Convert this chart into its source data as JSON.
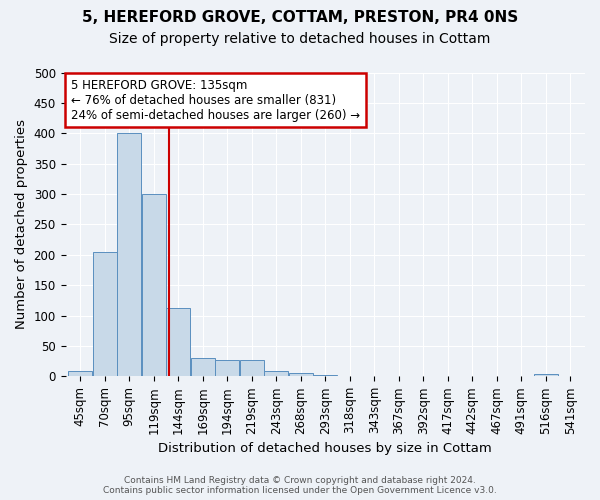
{
  "title_line1": "5, HEREFORD GROVE, COTTAM, PRESTON, PR4 0NS",
  "title_line2": "Size of property relative to detached houses in Cottam",
  "xlabel": "Distribution of detached houses by size in Cottam",
  "ylabel": "Number of detached properties",
  "footer_line1": "Contains HM Land Registry data © Crown copyright and database right 2024.",
  "footer_line2": "Contains public sector information licensed under the Open Government Licence v3.0.",
  "categories": [
    "45sqm",
    "70sqm",
    "95sqm",
    "119sqm",
    "144sqm",
    "169sqm",
    "194sqm",
    "219sqm",
    "243sqm",
    "268sqm",
    "293sqm",
    "318sqm",
    "343sqm",
    "367sqm",
    "392sqm",
    "417sqm",
    "442sqm",
    "467sqm",
    "491sqm",
    "516sqm",
    "541sqm"
  ],
  "values": [
    8,
    205,
    400,
    300,
    112,
    30,
    27,
    27,
    8,
    5,
    2,
    0,
    0,
    0,
    0,
    0,
    0,
    0,
    0,
    4,
    0
  ],
  "bar_color": "#c8d9e8",
  "bar_edge_color": "#5a8fbf",
  "annotation_text_line1": "5 HEREFORD GROVE: 135sqm",
  "annotation_text_line2": "← 76% of detached houses are smaller (831)",
  "annotation_text_line3": "24% of semi-detached houses are larger (260) →",
  "annotation_box_color": "#ffffff",
  "annotation_box_edge_color": "#cc0000",
  "vline_color": "#cc0000",
  "vline_x_bar": 3.64,
  "ylim": [
    0,
    500
  ],
  "yticks": [
    0,
    50,
    100,
    150,
    200,
    250,
    300,
    350,
    400,
    450,
    500
  ],
  "background_color": "#eef2f7",
  "grid_color": "#ffffff",
  "title_fontsize": 11,
  "subtitle_fontsize": 10,
  "tick_fontsize": 8.5,
  "label_fontsize": 9.5,
  "annotation_fontsize": 8.5
}
